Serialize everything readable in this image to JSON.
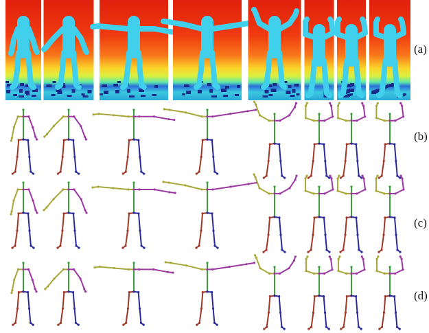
{
  "panel_labels": [
    "(a)",
    "(b)",
    "(c)",
    "(d)"
  ]
}
